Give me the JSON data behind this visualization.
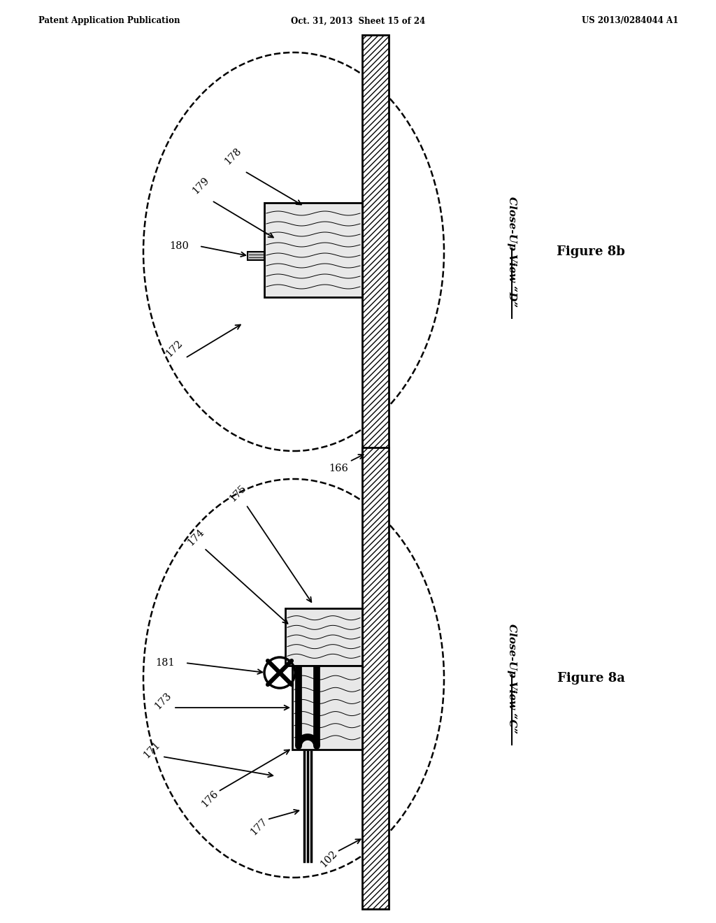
{
  "header_left": "Patent Application Publication",
  "header_center": "Oct. 31, 2013  Sheet 15 of 24",
  "header_right": "US 2013/0284044 A1",
  "fig_b_label": "Figure 8b",
  "fig_a_label": "Figure 8a",
  "view_b": "Close-Up View “D”",
  "view_a": "Close-Up View “C”",
  "bg_color": "#ffffff"
}
